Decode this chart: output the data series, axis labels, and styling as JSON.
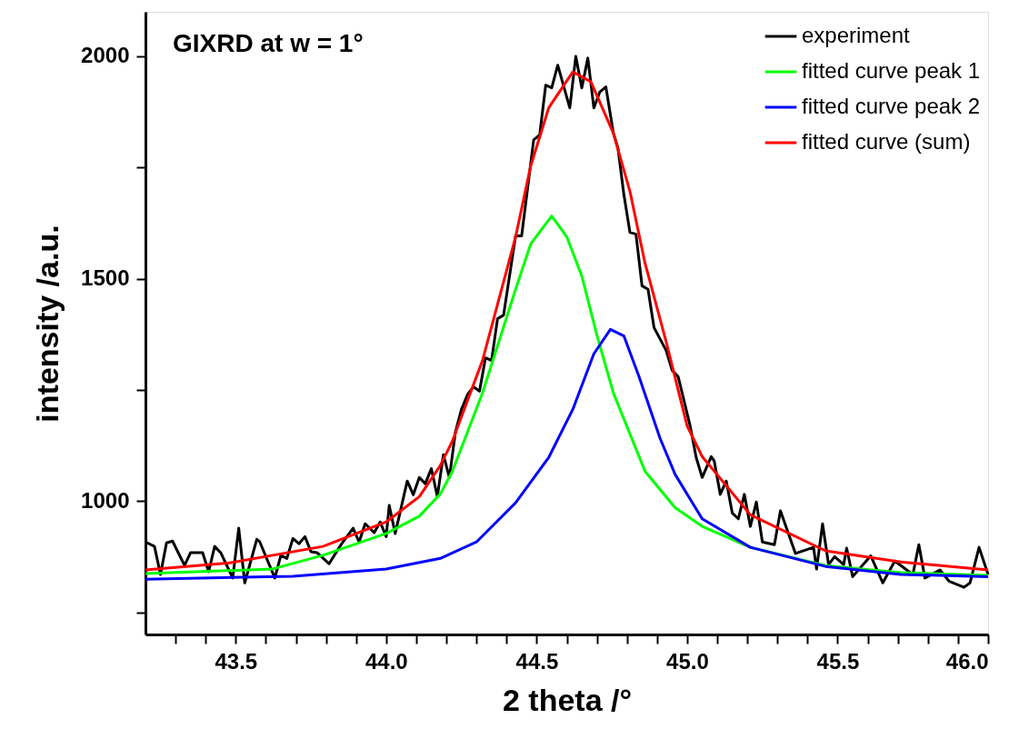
{
  "chart_data": {
    "type": "line",
    "title": "GIXRD at w = 1°",
    "xlabel": "2 theta /°",
    "ylabel": "intensity /a.u.",
    "xlim": [
      43.2,
      46.0
    ],
    "ylim": [
      700,
      2100
    ],
    "xticks": [
      {
        "value": 43.3,
        "label": null
      },
      {
        "value": 43.4,
        "label": null
      },
      {
        "value": 43.5,
        "label": "43.5"
      },
      {
        "value": 43.6,
        "label": null
      },
      {
        "value": 43.7,
        "label": null
      },
      {
        "value": 43.8,
        "label": null
      },
      {
        "value": 43.9,
        "label": null
      },
      {
        "value": 44.0,
        "label": "44.0"
      },
      {
        "value": 44.1,
        "label": null
      },
      {
        "value": 44.2,
        "label": null
      },
      {
        "value": 44.3,
        "label": null
      },
      {
        "value": 44.4,
        "label": null
      },
      {
        "value": 44.5,
        "label": "44.5"
      },
      {
        "value": 44.6,
        "label": null
      },
      {
        "value": 44.7,
        "label": null
      },
      {
        "value": 44.8,
        "label": null
      },
      {
        "value": 44.9,
        "label": null
      },
      {
        "value": 45.0,
        "label": "45.0"
      },
      {
        "value": 45.1,
        "label": null
      },
      {
        "value": 45.2,
        "label": null
      },
      {
        "value": 45.3,
        "label": null
      },
      {
        "value": 45.4,
        "label": null
      },
      {
        "value": 45.5,
        "label": "45.5"
      },
      {
        "value": 45.6,
        "label": null
      },
      {
        "value": 45.7,
        "label": null
      },
      {
        "value": 45.8,
        "label": null
      },
      {
        "value": 45.9,
        "label": null
      },
      {
        "value": 46.0,
        "label": "46.0"
      }
    ],
    "yticks": [
      {
        "value": 750,
        "label": null
      },
      1000,
      {
        "value": 1250,
        "label": null
      },
      1500,
      {
        "value": 1750,
        "label": null
      },
      2000
    ],
    "grid": false,
    "legend": "top right",
    "series": [
      {
        "name": "experiment",
        "color": "#000000",
        "x": [
          43.2,
          43.23,
          43.25,
          43.27,
          43.29,
          43.33,
          43.35,
          43.39,
          43.41,
          43.43,
          43.45,
          43.49,
          43.51,
          43.53,
          43.57,
          43.58,
          43.63,
          43.65,
          43.67,
          43.69,
          43.71,
          43.73,
          43.75,
          43.77,
          43.81,
          43.85,
          43.89,
          43.91,
          43.93,
          43.96,
          43.98,
          44.0,
          44.01,
          44.03,
          44.07,
          44.09,
          44.11,
          44.13,
          44.15,
          44.17,
          44.19,
          44.21,
          44.23,
          44.25,
          44.27,
          44.29,
          44.31,
          44.33,
          44.35,
          44.37,
          44.39,
          44.43,
          44.45,
          44.49,
          44.51,
          44.53,
          44.55,
          44.57,
          44.61,
          44.63,
          44.65,
          44.67,
          44.69,
          44.71,
          44.73,
          44.755,
          44.77,
          44.79,
          44.81,
          44.83,
          44.85,
          44.87,
          44.89,
          44.93,
          44.95,
          44.97,
          45.01,
          45.03,
          45.05,
          45.08,
          45.09,
          45.11,
          45.13,
          45.15,
          45.17,
          45.19,
          45.21,
          45.23,
          45.25,
          45.29,
          45.31,
          45.36,
          45.42,
          45.43,
          45.45,
          45.47,
          45.49,
          45.52,
          45.53,
          45.55,
          45.61,
          45.65,
          45.69,
          45.75,
          45.77,
          45.79,
          45.84,
          45.87,
          45.92,
          45.94,
          45.97,
          46.0
        ],
        "values": [
          908,
          898,
          835,
          906,
          910,
          855,
          884,
          884,
          841,
          898,
          884,
          827,
          939,
          816,
          914,
          908,
          827,
          878,
          871,
          916,
          904,
          920,
          886,
          884,
          859,
          902,
          939,
          908,
          949,
          929,
          953,
          920,
          990,
          927,
          1045,
          1014,
          1053,
          1039,
          1073,
          1010,
          1104,
          1053,
          1155,
          1206,
          1239,
          1257,
          1247,
          1322,
          1316,
          1410,
          1418,
          1596,
          1596,
          1812,
          1823,
          1935,
          1929,
          1980,
          1884,
          2000,
          1929,
          1996,
          1884,
          1920,
          1931,
          1827,
          1794,
          1688,
          1604,
          1600,
          1484,
          1476,
          1390,
          1339,
          1294,
          1280,
          1169,
          1098,
          1053,
          1100,
          1090,
          1015,
          1045,
          973,
          960,
          1015,
          943,
          998,
          908,
          902,
          978,
          882,
          896,
          847,
          949,
          857,
          875,
          857,
          894,
          830,
          877,
          816,
          865,
          835,
          902,
          827,
          845,
          820,
          806,
          816,
          896,
          835
        ]
      },
      {
        "name": "fitted curve peak 1",
        "color": "#00ff00",
        "x": [
          43.2,
          43.62,
          43.79,
          44.0,
          44.11,
          44.18,
          44.22,
          44.32,
          44.43,
          44.48,
          44.55,
          44.6,
          44.65,
          44.7,
          44.755,
          44.86,
          44.96,
          45.05,
          45.21,
          45.46,
          45.71,
          46.0
        ],
        "values": [
          837,
          847,
          878,
          927,
          966,
          1016,
          1067,
          1243,
          1476,
          1578,
          1641,
          1594,
          1506,
          1373,
          1243,
          1067,
          985,
          943,
          896,
          855,
          839,
          833
        ]
      },
      {
        "name": "fitted curve peak 2",
        "color": "#0000ff",
        "x": [
          43.2,
          43.69,
          44.0,
          44.18,
          44.3,
          44.43,
          44.54,
          44.62,
          44.69,
          44.745,
          44.79,
          44.84,
          44.91,
          44.96,
          45.05,
          45.21,
          45.46,
          45.71,
          46.0
        ],
        "values": [
          824,
          831,
          847,
          871,
          908,
          996,
          1098,
          1206,
          1331,
          1386,
          1371,
          1280,
          1141,
          1060,
          960,
          896,
          853,
          835,
          830
        ]
      },
      {
        "name": "fitted curve (sum)",
        "color": "#ff0000",
        "x": [
          43.2,
          43.48,
          43.79,
          44.0,
          44.11,
          44.18,
          44.22,
          44.32,
          44.43,
          44.48,
          44.54,
          44.62,
          44.68,
          44.755,
          44.81,
          44.86,
          44.93,
          45.0,
          45.05,
          45.21,
          45.46,
          45.71,
          46.0
        ],
        "values": [
          845,
          861,
          898,
          953,
          1010,
          1080,
          1135,
          1316,
          1594,
          1753,
          1884,
          1965,
          1943,
          1827,
          1696,
          1535,
          1359,
          1169,
          1100,
          969,
          888,
          863,
          845
        ]
      }
    ]
  }
}
